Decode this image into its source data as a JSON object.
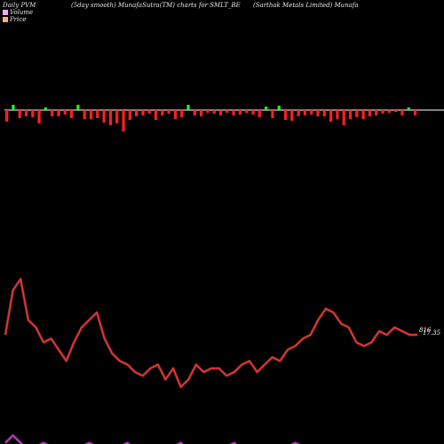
{
  "header": {
    "left": "Daily PVM",
    "smooth": "(5day smooth) MunafaSutra(TM) charts for SMLT_BE",
    "company": "(Sarthak Metals Limited) Munafa"
  },
  "legend": [
    {
      "label": "Volume",
      "color": "#f1a9ff"
    },
    {
      "label": "Price",
      "color": "#ffb07a"
    }
  ],
  "colors": {
    "background": "#000000",
    "up": "#1aff1a",
    "down": "#ff2020",
    "price": "#ff2a2a",
    "price_glow": "#ff9a8a",
    "volume": "#cc33cc",
    "volume_glow": "#ff88ff",
    "zero_line": "#ffffff"
  },
  "chart_data": {
    "type": "bar+line",
    "pvm_bars": [
      -1.3,
      0.6,
      -0.9,
      -0.7,
      -0.8,
      -1.5,
      0.3,
      -0.7,
      -0.7,
      -0.5,
      -0.9,
      0.6,
      -1.0,
      -1.0,
      -0.9,
      -1.4,
      -1.7,
      -1.5,
      -2.4,
      -1.1,
      -0.7,
      -0.6,
      -0.4,
      -1.1,
      -0.6,
      -0.4,
      -1.0,
      -0.8,
      0.6,
      -0.6,
      -0.7,
      -0.3,
      -0.4,
      -0.6,
      -0.3,
      -0.6,
      -0.5,
      -0.3,
      -0.5,
      -0.8,
      0.4,
      -0.9,
      0.5,
      -1.1,
      -1.2,
      -0.7,
      -0.6,
      -0.5,
      -0.7,
      -0.7,
      -1.3,
      -1.0,
      -1.7,
      -1.0,
      -0.8,
      -1.0,
      -0.7,
      -0.6,
      -0.4,
      -0.3,
      -0.2,
      -0.6,
      0.3,
      -0.6
    ],
    "price_series": [
      80,
      92,
      95,
      84,
      82,
      78,
      79,
      76,
      73,
      78,
      82,
      84,
      86,
      79,
      75,
      73,
      72,
      70,
      69,
      71,
      72,
      68,
      71,
      66,
      68,
      72,
      70,
      71,
      71,
      69,
      70,
      72,
      73,
      70,
      72,
      74,
      73,
      76,
      77,
      79,
      80,
      84,
      87,
      86,
      83,
      82,
      78,
      77,
      78,
      81,
      80,
      82,
      81,
      80,
      80
    ],
    "volume_series": [
      51,
      53,
      51,
      49,
      50,
      51,
      50,
      48,
      49,
      48,
      50,
      51,
      50,
      48,
      49,
      50,
      51,
      49,
      48,
      50,
      49,
      48,
      50,
      51,
      49,
      48,
      47,
      48,
      49,
      50,
      51,
      49,
      48,
      49,
      50,
      48,
      49,
      50,
      51,
      50,
      49,
      48,
      49,
      50,
      49,
      48,
      49,
      50,
      49,
      48,
      48,
      48,
      48,
      48,
      48
    ],
    "price_label": "17.35",
    "volume_label": "816"
  }
}
